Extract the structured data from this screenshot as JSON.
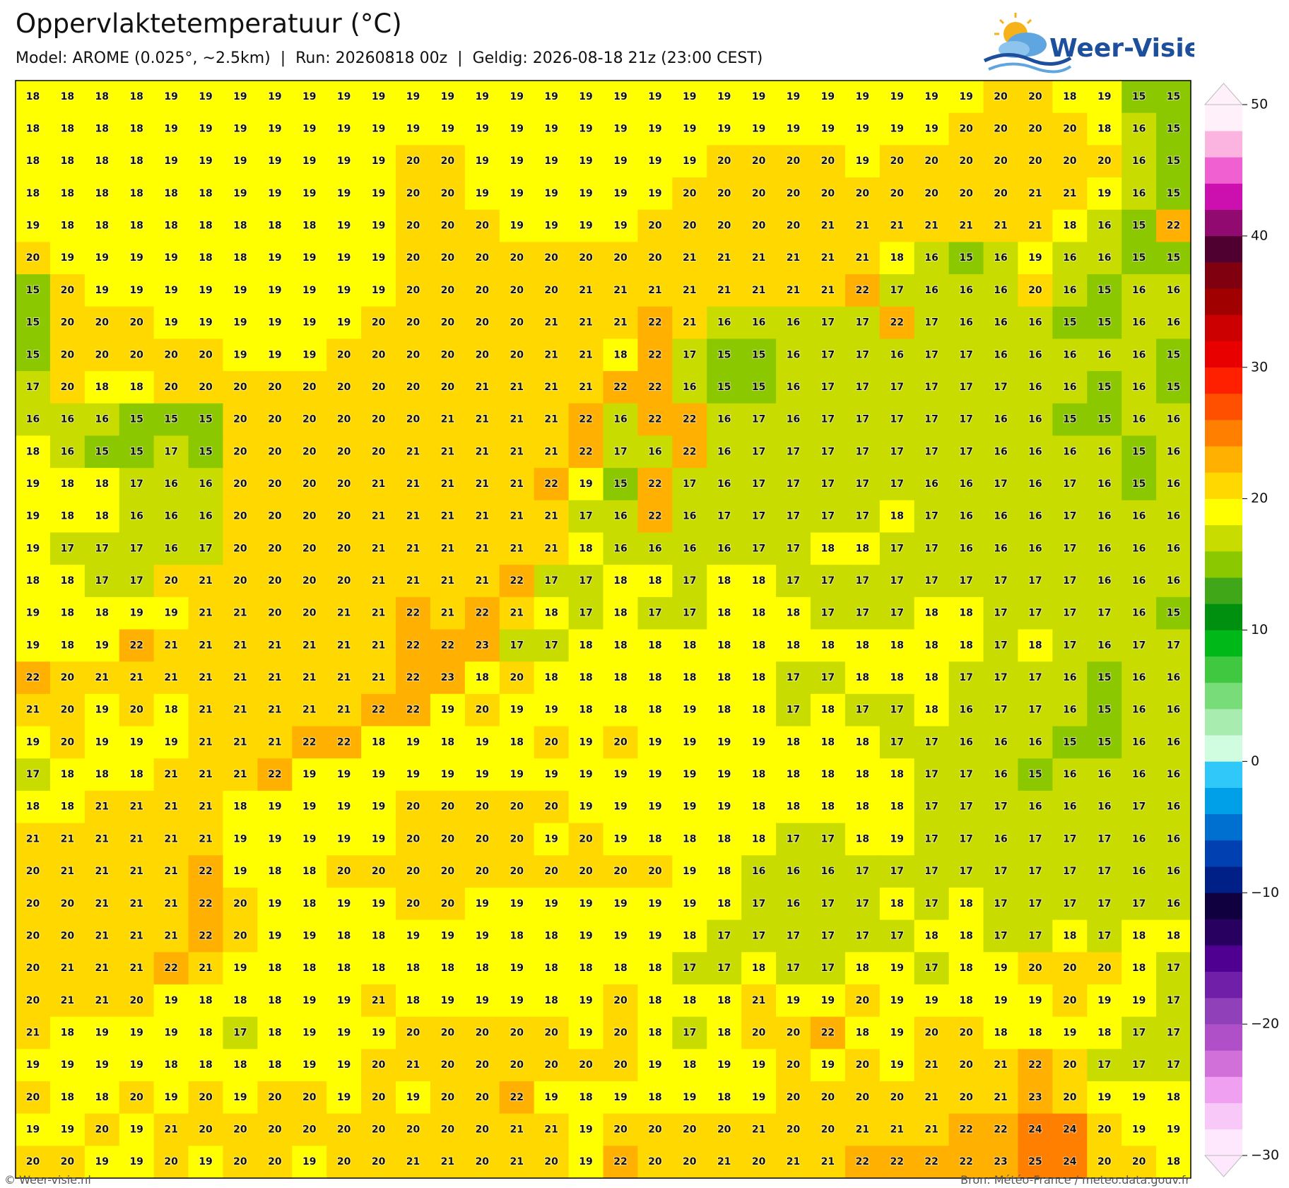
{
  "header": {
    "title": "Oppervlaktetemperatuur (°C)",
    "subtitle": "Model: AROME (0.025°, ~2.5km)  |  Run: 20260818 00z  |  Geldig: 2026-08-18 21z (23:00 CEST)",
    "logo": "Weer-Visie"
  },
  "grid": {
    "rows": [
      [
        18,
        18,
        18,
        18,
        19,
        19,
        19,
        19,
        19,
        19,
        19,
        19,
        19,
        19,
        19,
        19,
        19,
        19,
        19,
        19,
        19,
        19,
        19,
        19,
        19,
        19,
        19,
        19,
        20,
        20,
        18,
        19,
        15,
        15
      ],
      [
        18,
        18,
        18,
        18,
        19,
        19,
        19,
        19,
        19,
        19,
        19,
        19,
        19,
        19,
        19,
        19,
        19,
        19,
        19,
        19,
        19,
        19,
        19,
        19,
        19,
        19,
        19,
        20,
        20,
        20,
        20,
        18,
        16,
        15
      ],
      [
        18,
        18,
        18,
        18,
        19,
        19,
        19,
        19,
        19,
        19,
        19,
        20,
        20,
        19,
        19,
        19,
        19,
        19,
        19,
        19,
        20,
        20,
        20,
        20,
        19,
        20,
        20,
        20,
        20,
        20,
        20,
        20,
        16,
        15
      ],
      [
        18,
        18,
        18,
        18,
        18,
        18,
        19,
        19,
        19,
        19,
        19,
        20,
        20,
        19,
        19,
        19,
        19,
        19,
        19,
        20,
        20,
        20,
        20,
        20,
        20,
        20,
        20,
        20,
        20,
        21,
        21,
        19,
        16,
        15
      ],
      [
        19,
        18,
        18,
        18,
        18,
        18,
        18,
        18,
        18,
        19,
        19,
        20,
        20,
        20,
        19,
        19,
        19,
        19,
        20,
        20,
        20,
        20,
        20,
        21,
        21,
        21,
        21,
        21,
        21,
        21,
        18,
        16,
        15,
        22
      ],
      [
        20,
        19,
        19,
        19,
        19,
        18,
        18,
        19,
        19,
        19,
        19,
        20,
        20,
        20,
        20,
        20,
        20,
        20,
        20,
        21,
        21,
        21,
        21,
        21,
        21,
        18,
        16,
        15,
        16,
        19,
        16,
        16,
        15,
        15
      ],
      [
        15,
        20,
        19,
        19,
        19,
        19,
        19,
        19,
        19,
        19,
        19,
        20,
        20,
        20,
        20,
        20,
        21,
        21,
        21,
        21,
        21,
        21,
        21,
        21,
        22,
        17,
        16,
        16,
        16,
        20,
        16,
        15,
        16,
        16
      ],
      [
        15,
        20,
        20,
        20,
        19,
        19,
        19,
        19,
        19,
        19,
        20,
        20,
        20,
        20,
        20,
        21,
        21,
        21,
        22,
        21,
        16,
        16,
        16,
        17,
        17,
        22,
        17,
        16,
        16,
        16,
        15,
        15,
        16,
        16
      ],
      [
        15,
        20,
        20,
        20,
        20,
        20,
        19,
        19,
        19,
        20,
        20,
        20,
        20,
        20,
        20,
        21,
        21,
        18,
        22,
        17,
        15,
        15,
        16,
        17,
        17,
        16,
        17,
        17,
        16,
        16,
        16,
        16,
        16,
        15
      ],
      [
        17,
        20,
        18,
        18,
        20,
        20,
        20,
        20,
        20,
        20,
        20,
        20,
        20,
        21,
        21,
        21,
        21,
        22,
        22,
        16,
        15,
        15,
        16,
        17,
        17,
        17,
        17,
        17,
        17,
        16,
        16,
        15,
        16,
        15
      ],
      [
        16,
        16,
        16,
        15,
        15,
        15,
        20,
        20,
        20,
        20,
        20,
        20,
        21,
        21,
        21,
        21,
        22,
        16,
        22,
        22,
        16,
        17,
        16,
        17,
        17,
        17,
        17,
        17,
        16,
        16,
        15,
        15,
        16,
        16
      ],
      [
        18,
        16,
        15,
        15,
        17,
        15,
        20,
        20,
        20,
        20,
        20,
        21,
        21,
        21,
        21,
        21,
        22,
        17,
        16,
        22,
        16,
        17,
        17,
        17,
        17,
        17,
        17,
        17,
        16,
        16,
        16,
        16,
        15,
        16
      ],
      [
        19,
        18,
        18,
        17,
        16,
        16,
        20,
        20,
        20,
        20,
        21,
        21,
        21,
        21,
        21,
        22,
        19,
        15,
        22,
        17,
        16,
        17,
        17,
        17,
        17,
        17,
        16,
        16,
        17,
        16,
        17,
        16,
        15,
        16
      ],
      [
        19,
        18,
        18,
        16,
        16,
        16,
        20,
        20,
        20,
        20,
        21,
        21,
        21,
        21,
        21,
        21,
        17,
        16,
        22,
        16,
        17,
        17,
        17,
        17,
        17,
        18,
        17,
        16,
        16,
        16,
        17,
        16,
        16,
        16
      ],
      [
        19,
        17,
        17,
        17,
        16,
        17,
        20,
        20,
        20,
        20,
        21,
        21,
        21,
        21,
        21,
        21,
        18,
        16,
        16,
        16,
        16,
        17,
        17,
        18,
        18,
        17,
        17,
        16,
        16,
        16,
        17,
        16,
        16,
        16
      ],
      [
        18,
        18,
        17,
        17,
        20,
        21,
        20,
        20,
        20,
        20,
        21,
        21,
        21,
        21,
        22,
        17,
        17,
        18,
        18,
        17,
        18,
        18,
        17,
        17,
        17,
        17,
        17,
        17,
        17,
        17,
        17,
        16,
        16,
        16
      ],
      [
        19,
        18,
        18,
        19,
        19,
        21,
        21,
        20,
        20,
        21,
        21,
        22,
        21,
        22,
        21,
        18,
        17,
        18,
        17,
        17,
        18,
        18,
        18,
        17,
        17,
        17,
        18,
        18,
        17,
        17,
        17,
        17,
        16,
        15
      ],
      [
        19,
        18,
        19,
        22,
        21,
        21,
        21,
        21,
        21,
        21,
        21,
        22,
        22,
        23,
        17,
        17,
        18,
        18,
        18,
        18,
        18,
        18,
        18,
        18,
        18,
        18,
        18,
        18,
        17,
        18,
        17,
        16,
        17,
        17
      ],
      [
        22,
        20,
        21,
        21,
        21,
        21,
        21,
        21,
        21,
        21,
        21,
        22,
        23,
        18,
        20,
        18,
        18,
        18,
        18,
        18,
        18,
        18,
        17,
        17,
        18,
        18,
        18,
        17,
        17,
        17,
        16,
        15,
        16,
        16
      ],
      [
        21,
        20,
        19,
        20,
        18,
        21,
        21,
        21,
        21,
        21,
        22,
        22,
        19,
        20,
        19,
        19,
        18,
        18,
        18,
        19,
        18,
        18,
        17,
        18,
        17,
        17,
        18,
        16,
        17,
        17,
        16,
        15,
        16,
        16
      ],
      [
        19,
        20,
        19,
        19,
        19,
        21,
        21,
        21,
        22,
        22,
        18,
        19,
        18,
        19,
        18,
        20,
        19,
        20,
        19,
        19,
        19,
        19,
        18,
        18,
        18,
        17,
        17,
        16,
        16,
        16,
        15,
        15,
        16,
        16
      ],
      [
        17,
        18,
        18,
        18,
        21,
        21,
        21,
        22,
        19,
        19,
        19,
        19,
        19,
        19,
        19,
        19,
        19,
        19,
        19,
        19,
        19,
        18,
        18,
        18,
        18,
        18,
        17,
        17,
        16,
        15,
        16,
        16,
        16,
        16
      ],
      [
        18,
        18,
        21,
        21,
        21,
        21,
        18,
        19,
        19,
        19,
        19,
        20,
        20,
        20,
        20,
        20,
        19,
        19,
        19,
        19,
        19,
        18,
        18,
        18,
        18,
        18,
        17,
        17,
        17,
        16,
        16,
        16,
        17,
        16
      ],
      [
        21,
        21,
        21,
        21,
        21,
        21,
        19,
        19,
        19,
        19,
        19,
        20,
        20,
        20,
        20,
        19,
        20,
        19,
        18,
        18,
        18,
        18,
        17,
        17,
        18,
        19,
        17,
        17,
        16,
        17,
        17,
        17,
        16,
        16
      ],
      [
        20,
        21,
        21,
        21,
        21,
        22,
        19,
        18,
        18,
        20,
        20,
        20,
        20,
        20,
        20,
        20,
        20,
        20,
        20,
        19,
        18,
        16,
        16,
        16,
        17,
        17,
        17,
        17,
        17,
        17,
        17,
        17,
        16,
        16
      ],
      [
        20,
        20,
        21,
        21,
        21,
        22,
        20,
        19,
        18,
        19,
        19,
        20,
        20,
        19,
        19,
        19,
        19,
        19,
        19,
        19,
        18,
        17,
        16,
        17,
        17,
        18,
        17,
        18,
        17,
        17,
        17,
        17,
        17,
        16
      ],
      [
        20,
        20,
        21,
        21,
        21,
        22,
        20,
        19,
        19,
        18,
        18,
        19,
        19,
        19,
        18,
        18,
        19,
        19,
        19,
        18,
        17,
        17,
        17,
        17,
        17,
        17,
        18,
        18,
        17,
        17,
        18,
        17,
        18,
        18
      ],
      [
        20,
        21,
        21,
        21,
        22,
        21,
        19,
        18,
        18,
        18,
        18,
        18,
        18,
        18,
        19,
        18,
        18,
        18,
        18,
        17,
        17,
        18,
        17,
        17,
        18,
        19,
        17,
        18,
        19,
        20,
        20,
        20,
        18,
        17
      ],
      [
        20,
        21,
        21,
        20,
        19,
        18,
        18,
        18,
        19,
        19,
        21,
        18,
        19,
        19,
        19,
        18,
        19,
        20,
        18,
        18,
        18,
        21,
        19,
        19,
        20,
        19,
        19,
        18,
        19,
        19,
        20,
        19,
        19,
        17
      ],
      [
        21,
        18,
        19,
        19,
        19,
        18,
        17,
        18,
        19,
        19,
        19,
        20,
        20,
        20,
        20,
        20,
        19,
        20,
        18,
        17,
        18,
        20,
        20,
        22,
        18,
        19,
        20,
        20,
        18,
        18,
        19,
        18,
        17,
        17
      ],
      [
        19,
        19,
        19,
        19,
        18,
        18,
        18,
        18,
        19,
        19,
        20,
        21,
        20,
        20,
        20,
        20,
        20,
        20,
        19,
        18,
        19,
        19,
        20,
        19,
        20,
        19,
        21,
        20,
        21,
        22,
        20,
        17,
        17,
        17
      ],
      [
        20,
        18,
        18,
        20,
        19,
        20,
        19,
        20,
        20,
        19,
        20,
        19,
        20,
        20,
        22,
        19,
        18,
        19,
        18,
        19,
        18,
        19,
        20,
        20,
        20,
        20,
        21,
        20,
        21,
        23,
        20,
        19,
        19,
        18
      ],
      [
        19,
        19,
        20,
        19,
        21,
        20,
        20,
        20,
        20,
        20,
        20,
        20,
        20,
        20,
        21,
        21,
        19,
        20,
        20,
        20,
        20,
        21,
        20,
        20,
        21,
        21,
        21,
        22,
        22,
        24,
        24,
        20,
        19,
        19
      ],
      [
        20,
        20,
        19,
        19,
        20,
        19,
        20,
        20,
        19,
        20,
        20,
        21,
        21,
        20,
        21,
        20,
        19,
        22,
        20,
        20,
        21,
        20,
        21,
        21,
        22,
        22,
        22,
        22,
        23,
        25,
        24,
        20,
        20,
        18
      ]
    ]
  },
  "colorbar": {
    "lim": [
      -30,
      50
    ],
    "ticks": [
      {
        "value": -30,
        "label": "−30"
      },
      {
        "value": -20,
        "label": "−20"
      },
      {
        "value": -10,
        "label": "−10"
      },
      0,
      10,
      20,
      30,
      40,
      50
    ],
    "colors": [
      "#fde8fd",
      "#f8c8f8",
      "#f0a0f0",
      "#d070d8",
      "#b050c8",
      "#9040b8",
      "#7020a8",
      "#500090",
      "#280060",
      "#100040",
      "#002088",
      "#0040b0",
      "#0070d0",
      "#00a0e8",
      "#30c8f8",
      "#d0fce0",
      "#a8ecb0",
      "#78dc78",
      "#40c840",
      "#00b818",
      "#009010",
      "#40a818",
      "#8cc800",
      "#c8dc00",
      "#ffff00",
      "#ffd800",
      "#ffb000",
      "#ff8000",
      "#ff5000",
      "#ff2000",
      "#e80000",
      "#cc0000",
      "#a00000",
      "#800010",
      "#500030",
      "#900a70",
      "#cc10b0",
      "#f060d0",
      "#fbb4e0",
      "#fff0fa"
    ]
  },
  "footer": {
    "left": "© Weer-visie.nl",
    "right": "Bron: Météo-France / meteo.data.gouv.fr"
  }
}
